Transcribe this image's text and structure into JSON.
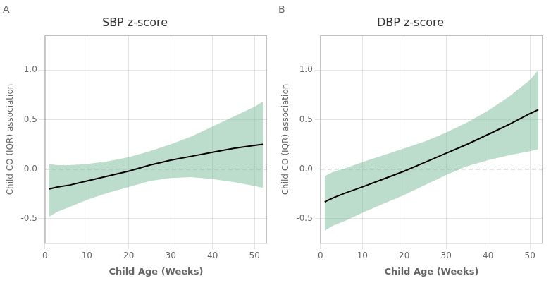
{
  "chart_data": [
    {
      "type": "line",
      "panel_label": "A",
      "title": "SBP z-score",
      "xlabel": "Child Age (Weeks)",
      "ylabel": "Child CO (IQR) association",
      "x": [
        1,
        3,
        6,
        10,
        15,
        20,
        25,
        30,
        35,
        40,
        45,
        50,
        52
      ],
      "values": [
        -0.2,
        -0.18,
        -0.16,
        -0.12,
        -0.07,
        -0.02,
        0.04,
        0.09,
        0.13,
        0.17,
        0.21,
        0.24,
        0.25
      ],
      "color": "#000000",
      "band": {
        "upper": [
          0.05,
          0.04,
          0.04,
          0.05,
          0.08,
          0.12,
          0.18,
          0.25,
          0.33,
          0.43,
          0.53,
          0.63,
          0.68
        ],
        "lower": [
          -0.48,
          -0.43,
          -0.38,
          -0.31,
          -0.24,
          -0.18,
          -0.12,
          -0.09,
          -0.08,
          -0.1,
          -0.13,
          -0.17,
          -0.19
        ],
        "color": "#7ab99a"
      },
      "reference_line": {
        "y": 0,
        "line_style": "dashed",
        "color": "#444444"
      },
      "xlim": [
        0,
        53
      ],
      "xticks": [
        0,
        10,
        20,
        30,
        40,
        50
      ],
      "ylim": [
        -0.75,
        1.35
      ],
      "yticks": [
        -0.5,
        {
          "value": 0.0,
          "label": "0.0"
        },
        0.5,
        {
          "value": 1.0,
          "label": "1.0"
        }
      ],
      "grid": true
    },
    {
      "type": "line",
      "panel_label": "B",
      "title": "DBP z-score",
      "xlabel": "Child Age (Weeks)",
      "ylabel": "Child CO (IQR) association",
      "x": [
        1,
        3,
        6,
        10,
        15,
        20,
        25,
        30,
        35,
        40,
        45,
        50,
        52
      ],
      "values": [
        -0.33,
        -0.29,
        -0.24,
        -0.18,
        -0.1,
        -0.02,
        0.07,
        0.16,
        0.25,
        0.35,
        0.45,
        0.56,
        0.6
      ],
      "color": "#000000",
      "band": {
        "upper": [
          -0.07,
          -0.03,
          0.01,
          0.07,
          0.14,
          0.21,
          0.28,
          0.37,
          0.47,
          0.59,
          0.73,
          0.9,
          1.0
        ],
        "lower": [
          -0.62,
          -0.57,
          -0.52,
          -0.44,
          -0.35,
          -0.26,
          -0.16,
          -0.06,
          0.03,
          0.09,
          0.14,
          0.18,
          0.2
        ],
        "color": "#7ab99a"
      },
      "reference_line": {
        "y": 0,
        "line_style": "dashed",
        "color": "#444444"
      },
      "xlim": [
        0,
        53
      ],
      "xticks": [
        0,
        10,
        20,
        30,
        40,
        50
      ],
      "ylim": [
        -0.75,
        1.35
      ],
      "yticks": [
        -0.5,
        {
          "value": 0.0,
          "label": "0.0"
        },
        0.5,
        {
          "value": 1.0,
          "label": "1.0"
        }
      ],
      "grid": true
    }
  ]
}
